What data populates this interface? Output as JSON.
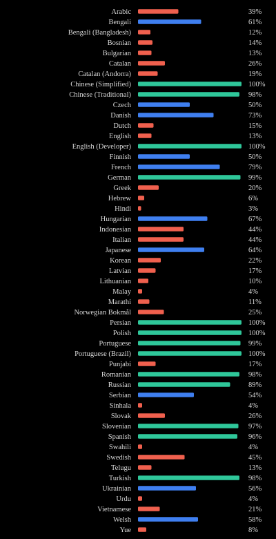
{
  "colors": {
    "background": "#000000",
    "low": "#f0604e",
    "mid": "#3f7ff0",
    "high": "#2fc79a",
    "text": "#d8d8d8"
  },
  "chart_data": {
    "type": "bar",
    "orientation": "horizontal",
    "xlim": [
      0,
      100
    ],
    "grid": false,
    "legend": "none",
    "value_suffix": "%",
    "categories": [
      "Arabic",
      "Bengali",
      "Bengali (Bangladesh)",
      "Bosnian",
      "Bulgarian",
      "Catalan",
      "Catalan (Andorra)",
      "Chinese (Simplified)",
      "Chinese (Traditional)",
      "Czech",
      "Danish",
      "Dutch",
      "English",
      "English (Developer)",
      "Finnish",
      "French",
      "German",
      "Greek",
      "Hebrew",
      "Hindi",
      "Hungarian",
      "Indonesian",
      "Italian",
      "Japanese",
      "Korean",
      "Latvian",
      "Lithuanian",
      "Malay",
      "Marathi",
      "Norwegian Bokmål",
      "Persian",
      "Polish",
      "Portuguese",
      "Portuguese (Brazil)",
      "Punjabi",
      "Romanian",
      "Russian",
      "Serbian",
      "Sinhala",
      "Slovak",
      "Slovenian",
      "Spanish",
      "Swahili",
      "Swedish",
      "Telugu",
      "Turkish",
      "Ukrainian",
      "Urdu",
      "Vietnamese",
      "Welsh",
      "Yue"
    ],
    "values": [
      39,
      61,
      12,
      14,
      13,
      26,
      19,
      100,
      98,
      50,
      73,
      15,
      13,
      100,
      50,
      79,
      99,
      20,
      6,
      3,
      67,
      44,
      44,
      64,
      22,
      17,
      10,
      4,
      11,
      25,
      100,
      100,
      99,
      100,
      17,
      98,
      89,
      54,
      4,
      26,
      97,
      96,
      4,
      45,
      13,
      98,
      56,
      4,
      21,
      58,
      8
    ],
    "labels": [
      "39%",
      "61%",
      "12%",
      "14%",
      "13%",
      "26%",
      "19%",
      "100%",
      "98%",
      "50%",
      "73%",
      "15%",
      "13%",
      "100%",
      "50%",
      "79%",
      "99%",
      "20%",
      "6%",
      "3%",
      "67%",
      "44%",
      "44%",
      "64%",
      "22%",
      "17%",
      "10%",
      "4%",
      "11%",
      "25%",
      "100%",
      "100%",
      "99%",
      "100%",
      "17%",
      "98%",
      "89%",
      "54%",
      "4%",
      "26%",
      "97%",
      "96%",
      "4%",
      "45%",
      "13%",
      "98%",
      "56%",
      "4%",
      "21%",
      "58%",
      "8%"
    ]
  }
}
